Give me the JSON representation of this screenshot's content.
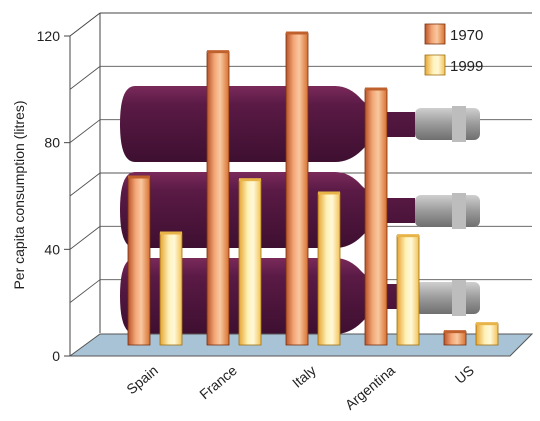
{
  "chart_data": {
    "type": "bar",
    "title": "",
    "xlabel": "",
    "ylabel": "Per capita consumption (litres)",
    "ylim": [
      0,
      120
    ],
    "yticks": [
      "0",
      "40",
      "80",
      "120"
    ],
    "categories": [
      "Spain",
      "France",
      "Italy",
      "Argentina",
      "US"
    ],
    "series": [
      {
        "name": "1970",
        "values": [
          63,
          110,
          117,
          96,
          5
        ],
        "color": "#e8894a"
      },
      {
        "name": "1999",
        "values": [
          42,
          62,
          57,
          41,
          8
        ],
        "color": "#fbd36a"
      }
    ],
    "legend_position": "top-right",
    "grid": true,
    "style": "3d bars with wine-bottle background illustration"
  }
}
